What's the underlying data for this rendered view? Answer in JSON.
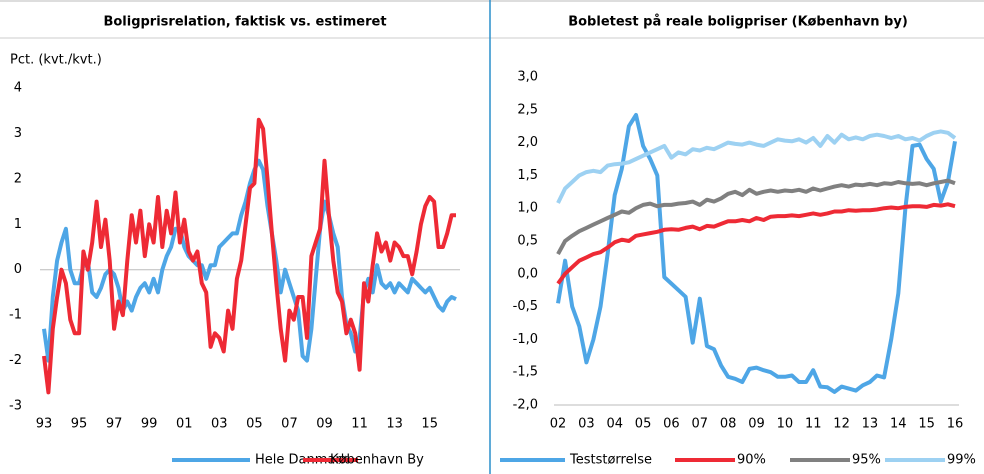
{
  "chart_data": [
    {
      "type": "line",
      "title": "Boligprisrelation, faktisk vs. estimeret",
      "y_label": "Pct. (kvt./kvt.)",
      "categories": [
        "93",
        null,
        null,
        null,
        null,
        null,
        null,
        null,
        "95",
        null,
        null,
        null,
        null,
        null,
        null,
        null,
        "97",
        null,
        null,
        null,
        null,
        null,
        null,
        null,
        "99",
        null,
        null,
        null,
        null,
        null,
        null,
        null,
        "01",
        null,
        null,
        null,
        null,
        null,
        null,
        null,
        "03",
        null,
        null,
        null,
        null,
        null,
        null,
        null,
        "05",
        null,
        null,
        null,
        null,
        null,
        null,
        null,
        "07",
        null,
        null,
        null,
        null,
        null,
        null,
        null,
        "09",
        null,
        null,
        null,
        null,
        null,
        null,
        null,
        "11",
        null,
        null,
        null,
        null,
        null,
        null,
        null,
        "13",
        null,
        null,
        null,
        null,
        null,
        null,
        null,
        "15",
        null,
        null,
        null,
        null,
        null,
        null
      ],
      "series": [
        {
          "name": "Hele Danmark",
          "color": "#4ea6e6",
          "values": [
            -1.3,
            -2.0,
            -0.6,
            0.2,
            0.6,
            0.9,
            0.0,
            -0.3,
            -0.3,
            0.1,
            0.2,
            -0.5,
            -0.6,
            -0.4,
            -0.1,
            0.0,
            -0.1,
            -0.4,
            -0.9,
            -0.7,
            -0.9,
            -0.6,
            -0.4,
            -0.3,
            -0.5,
            -0.2,
            -0.5,
            0.0,
            0.3,
            0.5,
            0.9,
            0.9,
            0.5,
            0.3,
            0.2,
            0.1,
            0.1,
            -0.2,
            0.1,
            0.1,
            0.5,
            0.6,
            0.7,
            0.8,
            0.8,
            1.2,
            1.5,
            1.9,
            2.2,
            2.4,
            2.2,
            1.4,
            0.8,
            0.2,
            -0.5,
            0.0,
            -0.3,
            -0.6,
            -0.9,
            -1.9,
            -2.0,
            -1.3,
            -0.2,
            0.9,
            1.5,
            1.2,
            0.8,
            0.5,
            -0.6,
            -1.2,
            -1.4,
            -1.8,
            -1.5,
            -0.5,
            -0.2,
            -0.5,
            0.1,
            -0.3,
            -0.4,
            -0.3,
            -0.5,
            -0.3,
            -0.4,
            -0.5,
            -0.2,
            -0.3,
            -0.4,
            -0.5,
            -0.4,
            -0.6,
            -0.8,
            -0.9,
            -0.7,
            -0.6,
            -0.65
          ]
        },
        {
          "name": "København By",
          "color": "#ee2a35",
          "values": [
            -1.9,
            -2.7,
            -1.3,
            -0.6,
            0.0,
            -0.3,
            -1.1,
            -1.4,
            -1.4,
            0.4,
            0.0,
            0.6,
            1.5,
            0.5,
            1.1,
            0.2,
            -1.3,
            -0.7,
            -1.0,
            0.2,
            1.2,
            0.6,
            1.3,
            0.3,
            1.0,
            0.6,
            1.6,
            0.5,
            1.3,
            0.8,
            1.7,
            0.6,
            1.1,
            0.4,
            0.2,
            0.4,
            -0.3,
            -0.5,
            -1.7,
            -1.4,
            -1.5,
            -1.8,
            -0.9,
            -1.3,
            -0.2,
            0.2,
            1.0,
            1.8,
            1.9,
            3.3,
            3.1,
            2.0,
            0.8,
            -0.3,
            -1.3,
            -2.0,
            -0.9,
            -1.1,
            -0.6,
            -0.6,
            -1.5,
            0.3,
            0.6,
            0.9,
            2.4,
            1.2,
            0.2,
            -0.5,
            -0.7,
            -1.4,
            -1.1,
            -1.4,
            -2.2,
            -0.3,
            -0.7,
            0.1,
            0.8,
            0.4,
            0.6,
            0.2,
            0.6,
            0.5,
            0.3,
            0.3,
            -0.1,
            0.4,
            1.0,
            1.4,
            1.6,
            1.5,
            0.5,
            0.5,
            0.8,
            1.2,
            1.2
          ]
        }
      ],
      "ylim": [
        -3,
        4
      ],
      "yticks": [
        -3,
        -2,
        -1,
        0,
        1,
        2,
        3,
        4
      ]
    },
    {
      "type": "line",
      "title": "Bobletest på reale boligpriser (København by)",
      "categories": [
        "02",
        null,
        null,
        null,
        "03",
        null,
        null,
        null,
        "04",
        null,
        null,
        null,
        "05",
        null,
        null,
        null,
        "06",
        null,
        null,
        null,
        "07",
        null,
        null,
        null,
        "08",
        null,
        null,
        null,
        "09",
        null,
        null,
        null,
        "10",
        null,
        null,
        null,
        "11",
        null,
        null,
        null,
        "12",
        null,
        null,
        null,
        "13",
        null,
        null,
        null,
        "14",
        null,
        null,
        null,
        "15",
        null,
        null,
        null,
        "16"
      ],
      "series": [
        {
          "name": "Teststørrelse",
          "color": "#4ea6e6",
          "values": [
            -0.45,
            0.2,
            -0.5,
            -0.8,
            -1.35,
            -1.0,
            -0.5,
            0.3,
            1.2,
            1.6,
            2.25,
            2.42,
            1.95,
            1.75,
            1.5,
            -0.05,
            -0.15,
            -0.25,
            -0.35,
            -1.05,
            -0.38,
            -1.1,
            -1.15,
            -1.4,
            -1.57,
            -1.6,
            -1.65,
            -1.45,
            -1.43,
            -1.47,
            -1.5,
            -1.57,
            -1.57,
            -1.55,
            -1.65,
            -1.65,
            -1.47,
            -1.72,
            -1.73,
            -1.8,
            -1.72,
            -1.75,
            -1.78,
            -1.7,
            -1.65,
            -1.55,
            -1.58,
            -1.0,
            -0.3,
            1.0,
            1.95,
            1.97,
            1.75,
            1.6,
            1.1,
            1.4,
            2.02
          ]
        },
        {
          "name": "90%",
          "color": "#ee2a35",
          "values": [
            -0.15,
            0.0,
            0.1,
            0.2,
            0.25,
            0.3,
            0.33,
            0.4,
            0.48,
            0.52,
            0.5,
            0.58,
            0.6,
            0.62,
            0.64,
            0.67,
            0.68,
            0.67,
            0.7,
            0.72,
            0.68,
            0.73,
            0.72,
            0.76,
            0.8,
            0.8,
            0.82,
            0.8,
            0.85,
            0.82,
            0.87,
            0.88,
            0.88,
            0.89,
            0.88,
            0.9,
            0.92,
            0.9,
            0.92,
            0.95,
            0.95,
            0.97,
            0.96,
            0.97,
            0.97,
            0.98,
            1.0,
            1.01,
            1.0,
            1.02,
            1.03,
            1.03,
            1.02,
            1.05,
            1.04,
            1.06,
            1.03
          ]
        },
        {
          "name": "95%",
          "color": "#808080",
          "values": [
            0.3,
            0.5,
            0.58,
            0.65,
            0.7,
            0.75,
            0.8,
            0.85,
            0.9,
            0.95,
            0.93,
            1.0,
            1.05,
            1.07,
            1.03,
            1.05,
            1.05,
            1.07,
            1.08,
            1.1,
            1.05,
            1.13,
            1.1,
            1.15,
            1.22,
            1.25,
            1.2,
            1.28,
            1.22,
            1.25,
            1.27,
            1.25,
            1.27,
            1.26,
            1.28,
            1.25,
            1.3,
            1.27,
            1.3,
            1.33,
            1.35,
            1.33,
            1.36,
            1.35,
            1.37,
            1.35,
            1.38,
            1.37,
            1.4,
            1.38,
            1.37,
            1.38,
            1.35,
            1.38,
            1.4,
            1.42,
            1.38
          ]
        },
        {
          "name": "99%",
          "color": "#9dd1f2",
          "values": [
            1.08,
            1.3,
            1.4,
            1.5,
            1.55,
            1.57,
            1.55,
            1.65,
            1.67,
            1.68,
            1.7,
            1.75,
            1.8,
            1.85,
            1.9,
            1.95,
            1.77,
            1.85,
            1.82,
            1.9,
            1.88,
            1.92,
            1.9,
            1.95,
            2.0,
            1.98,
            1.97,
            2.0,
            1.97,
            1.95,
            2.0,
            2.05,
            2.03,
            2.02,
            2.05,
            2.0,
            2.07,
            1.95,
            2.1,
            2.0,
            2.12,
            2.05,
            2.08,
            2.05,
            2.1,
            2.12,
            2.1,
            2.07,
            2.1,
            2.05,
            2.07,
            2.03,
            2.1,
            2.15,
            2.17,
            2.15,
            2.07
          ]
        }
      ],
      "ylim": [
        -2,
        3
      ],
      "yticks": [
        {
          "value": -2,
          "label": "-2,0"
        },
        {
          "value": -1.5,
          "label": "-1,5"
        },
        {
          "value": -1,
          "label": "-1,0"
        },
        {
          "value": -0.5,
          "label": "-0,5"
        },
        {
          "value": 0,
          "label": "0,0"
        },
        {
          "value": 0.5,
          "label": "0,5"
        },
        {
          "value": 1,
          "label": "1,0"
        },
        {
          "value": 1.5,
          "label": "1,5"
        },
        {
          "value": 2,
          "label": "2,0"
        },
        {
          "value": 2.5,
          "label": "2,5"
        },
        {
          "value": 3,
          "label": "3,0"
        }
      ]
    }
  ]
}
